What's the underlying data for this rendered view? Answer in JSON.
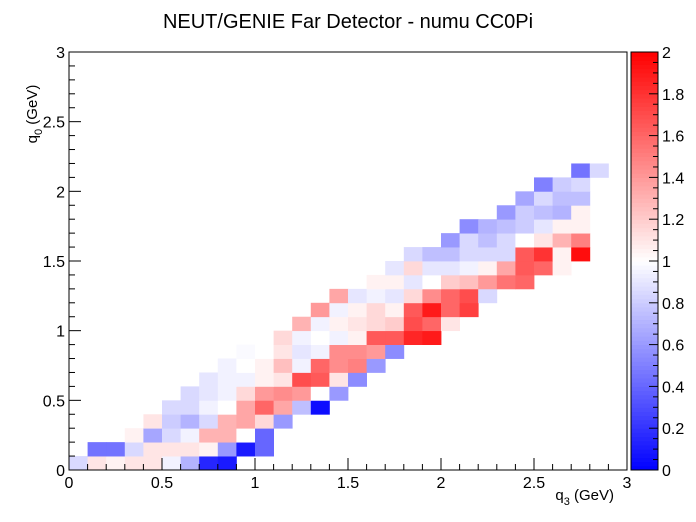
{
  "chart_data": {
    "type": "heatmap",
    "title": "NEUT/GENIE Far Detector - numu CC0Pi",
    "xlabel": {
      "main": "q",
      "sub": "3",
      "unit": " (GeV)"
    },
    "ylabel": {
      "main": "q",
      "sub": "0",
      "unit": " (GeV)"
    },
    "xlim": [
      0,
      3
    ],
    "ylim": [
      0,
      3
    ],
    "xticks": [
      0,
      0.5,
      1,
      1.5,
      2,
      2.5,
      3
    ],
    "xtick_labels": [
      "0",
      "0.5",
      "1",
      "1.5",
      "2",
      "2.5",
      "3"
    ],
    "yticks": [
      0,
      0.5,
      1,
      1.5,
      2,
      2.5,
      3
    ],
    "ytick_labels": [
      "0",
      "0.5",
      "1",
      "1.5",
      "2",
      "2.5",
      "3"
    ],
    "zlim": [
      0,
      2
    ],
    "zticks": [
      0,
      0.2,
      0.4,
      0.6,
      0.8,
      1,
      1.2,
      1.4,
      1.6,
      1.8,
      2
    ],
    "ztick_labels": [
      "0",
      "0.2",
      "0.4",
      "0.6",
      "0.8",
      "1",
      "1.2",
      "1.4",
      "1.6",
      "1.8",
      "2"
    ],
    "colormap": {
      "low": "#0000ff",
      "mid": "#ffffff",
      "high": "#ff0000"
    },
    "nbins_x": 30,
    "nbins_y": 30,
    "bin_width": 0.1,
    "cells": [
      [
        0,
        0,
        0.85
      ],
      [
        1,
        0,
        1.1
      ],
      [
        2,
        0,
        1.05
      ],
      [
        3,
        0,
        1.1
      ],
      [
        4,
        0,
        1.1
      ],
      [
        5,
        0,
        0.95
      ],
      [
        6,
        0,
        0.7
      ],
      [
        7,
        0,
        0.15
      ],
      [
        8,
        0,
        0.1
      ],
      [
        1,
        1,
        0.45
      ],
      [
        2,
        1,
        0.45
      ],
      [
        3,
        1,
        0.85
      ],
      [
        4,
        1,
        1.1
      ],
      [
        5,
        1,
        1.1
      ],
      [
        6,
        1,
        1.1
      ],
      [
        7,
        1,
        1.05
      ],
      [
        8,
        1,
        0.6
      ],
      [
        9,
        1,
        0.1
      ],
      [
        10,
        1,
        0.4
      ],
      [
        3,
        2,
        1.05
      ],
      [
        4,
        2,
        0.65
      ],
      [
        5,
        2,
        0.85
      ],
      [
        6,
        2,
        0.95
      ],
      [
        7,
        2,
        1.3
      ],
      [
        8,
        2,
        1.3
      ],
      [
        9,
        2,
        1.0
      ],
      [
        10,
        2,
        0.4
      ],
      [
        4,
        3,
        1.1
      ],
      [
        5,
        3,
        0.8
      ],
      [
        6,
        3,
        0.7
      ],
      [
        7,
        3,
        0.85
      ],
      [
        8,
        3,
        1.3
      ],
      [
        9,
        3,
        1.35
      ],
      [
        10,
        3,
        1.15
      ],
      [
        11,
        3,
        0.6
      ],
      [
        5,
        4,
        0.85
      ],
      [
        6,
        4,
        0.85
      ],
      [
        7,
        4,
        0.95
      ],
      [
        8,
        4,
        1.0
      ],
      [
        9,
        4,
        1.35
      ],
      [
        10,
        4,
        1.6
      ],
      [
        11,
        4,
        1.35
      ],
      [
        12,
        4,
        0.75
      ],
      [
        13,
        4,
        0.05
      ],
      [
        6,
        5,
        0.85
      ],
      [
        7,
        5,
        0.9
      ],
      [
        8,
        5,
        0.95
      ],
      [
        9,
        5,
        1.15
      ],
      [
        10,
        5,
        1.4
      ],
      [
        11,
        5,
        1.45
      ],
      [
        12,
        5,
        1.4
      ],
      [
        13,
        5,
        1.0
      ],
      [
        14,
        5,
        0.6
      ],
      [
        7,
        6,
        0.9
      ],
      [
        8,
        6,
        0.95
      ],
      [
        9,
        6,
        0.95
      ],
      [
        10,
        6,
        1.05
      ],
      [
        11,
        6,
        1.1
      ],
      [
        12,
        6,
        1.7
      ],
      [
        13,
        6,
        1.65
      ],
      [
        14,
        6,
        1.1
      ],
      [
        15,
        6,
        0.55
      ],
      [
        8,
        7,
        0.95
      ],
      [
        9,
        7,
        1.0
      ],
      [
        10,
        7,
        1.05
      ],
      [
        11,
        7,
        1.25
      ],
      [
        12,
        7,
        0.95
      ],
      [
        13,
        7,
        1.6
      ],
      [
        14,
        7,
        1.45
      ],
      [
        15,
        7,
        1.5
      ],
      [
        16,
        7,
        0.6
      ],
      [
        9,
        8,
        0.98
      ],
      [
        10,
        8,
        1.0
      ],
      [
        11,
        8,
        1.1
      ],
      [
        12,
        8,
        0.9
      ],
      [
        13,
        8,
        0.95
      ],
      [
        14,
        8,
        1.45
      ],
      [
        15,
        8,
        1.45
      ],
      [
        16,
        8,
        1.4
      ],
      [
        17,
        8,
        0.55
      ],
      [
        11,
        9,
        1.15
      ],
      [
        12,
        9,
        0.95
      ],
      [
        13,
        9,
        1.0
      ],
      [
        14,
        9,
        0.95
      ],
      [
        15,
        9,
        1.05
      ],
      [
        16,
        9,
        1.65
      ],
      [
        17,
        9,
        1.65
      ],
      [
        18,
        9,
        1.85
      ],
      [
        19,
        9,
        1.9
      ],
      [
        12,
        10,
        1.3
      ],
      [
        13,
        10,
        0.95
      ],
      [
        14,
        10,
        1.05
      ],
      [
        15,
        10,
        1.1
      ],
      [
        16,
        10,
        1.15
      ],
      [
        17,
        10,
        1.2
      ],
      [
        18,
        10,
        1.7
      ],
      [
        19,
        10,
        1.6
      ],
      [
        20,
        10,
        1.1
      ],
      [
        13,
        11,
        1.4
      ],
      [
        14,
        11,
        0.95
      ],
      [
        15,
        11,
        1.05
      ],
      [
        16,
        11,
        1.15
      ],
      [
        17,
        11,
        1.05
      ],
      [
        18,
        11,
        1.65
      ],
      [
        19,
        11,
        1.9
      ],
      [
        20,
        11,
        1.6
      ],
      [
        21,
        11,
        1.75
      ],
      [
        14,
        12,
        1.35
      ],
      [
        15,
        12,
        0.9
      ],
      [
        16,
        12,
        0.95
      ],
      [
        17,
        12,
        0.9
      ],
      [
        18,
        12,
        1.15
      ],
      [
        19,
        12,
        1.45
      ],
      [
        20,
        12,
        1.6
      ],
      [
        21,
        12,
        1.7
      ],
      [
        22,
        12,
        0.85
      ],
      [
        16,
        13,
        1.05
      ],
      [
        17,
        13,
        1.05
      ],
      [
        18,
        13,
        0.9
      ],
      [
        19,
        13,
        1.0
      ],
      [
        20,
        13,
        1.2
      ],
      [
        21,
        13,
        1.25
      ],
      [
        22,
        13,
        1.4
      ],
      [
        23,
        13,
        1.55
      ],
      [
        24,
        13,
        1.6
      ],
      [
        17,
        14,
        0.9
      ],
      [
        18,
        14,
        1.15
      ],
      [
        19,
        14,
        0.9
      ],
      [
        20,
        14,
        0.9
      ],
      [
        21,
        14,
        0.95
      ],
      [
        22,
        14,
        1.05
      ],
      [
        23,
        14,
        1.35
      ],
      [
        24,
        14,
        1.65
      ],
      [
        25,
        14,
        1.6
      ],
      [
        26,
        14,
        1.05
      ],
      [
        18,
        15,
        0.85
      ],
      [
        19,
        15,
        0.75
      ],
      [
        20,
        15,
        0.75
      ],
      [
        21,
        15,
        0.85
      ],
      [
        22,
        15,
        0.85
      ],
      [
        23,
        15,
        0.85
      ],
      [
        24,
        15,
        1.65
      ],
      [
        25,
        15,
        1.8
      ],
      [
        26,
        15,
        1.05
      ],
      [
        27,
        15,
        1.95
      ],
      [
        20,
        16,
        0.6
      ],
      [
        21,
        16,
        0.85
      ],
      [
        22,
        16,
        0.75
      ],
      [
        23,
        16,
        0.85
      ],
      [
        24,
        16,
        1.0
      ],
      [
        25,
        16,
        1.1
      ],
      [
        26,
        16,
        1.3
      ],
      [
        27,
        16,
        1.5
      ],
      [
        21,
        17,
        0.55
      ],
      [
        22,
        17,
        0.7
      ],
      [
        23,
        17,
        0.75
      ],
      [
        24,
        17,
        0.8
      ],
      [
        25,
        17,
        0.9
      ],
      [
        26,
        17,
        1.05
      ],
      [
        27,
        17,
        1.05
      ],
      [
        23,
        18,
        0.6
      ],
      [
        24,
        18,
        0.8
      ],
      [
        25,
        18,
        0.75
      ],
      [
        26,
        18,
        0.7
      ],
      [
        27,
        18,
        1.05
      ],
      [
        24,
        19,
        0.65
      ],
      [
        25,
        19,
        0.85
      ],
      [
        26,
        19,
        0.75
      ],
      [
        27,
        19,
        0.75
      ],
      [
        25,
        20,
        0.5
      ],
      [
        26,
        20,
        0.8
      ],
      [
        27,
        20,
        0.85
      ],
      [
        27,
        21,
        0.45
      ],
      [
        28,
        21,
        0.85
      ]
    ]
  }
}
